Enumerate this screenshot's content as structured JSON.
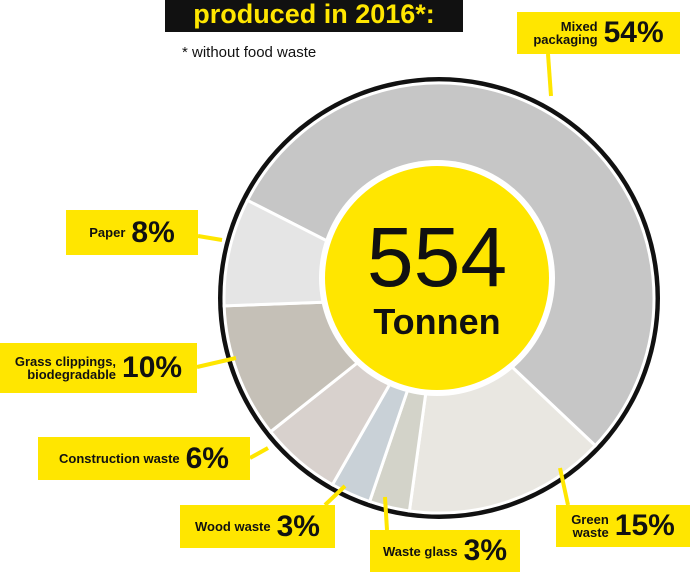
{
  "chart_data": {
    "type": "donut",
    "title": "produced in 2016*:",
    "subtitle": "* without food waste",
    "total": 554,
    "total_unit": "Tonnen",
    "categories": [
      "Mixed\npackaging",
      "Green\nwaste",
      "Waste glass",
      "Wood waste",
      "Construction waste",
      "Grass clippings,\nbiodegradable",
      "Paper"
    ],
    "values": [
      54,
      15,
      3,
      3,
      6,
      10,
      8
    ],
    "value_labels": [
      "54%",
      "15%",
      "3%",
      "3%",
      "6%",
      "10%",
      "8%"
    ],
    "colors": [
      "#c6c6c6",
      "#e9e7e1",
      "#d3d3c9",
      "#c9d1d7",
      "#d8d1cd",
      "#c5c0b7",
      "#e5e5e5"
    ]
  }
}
